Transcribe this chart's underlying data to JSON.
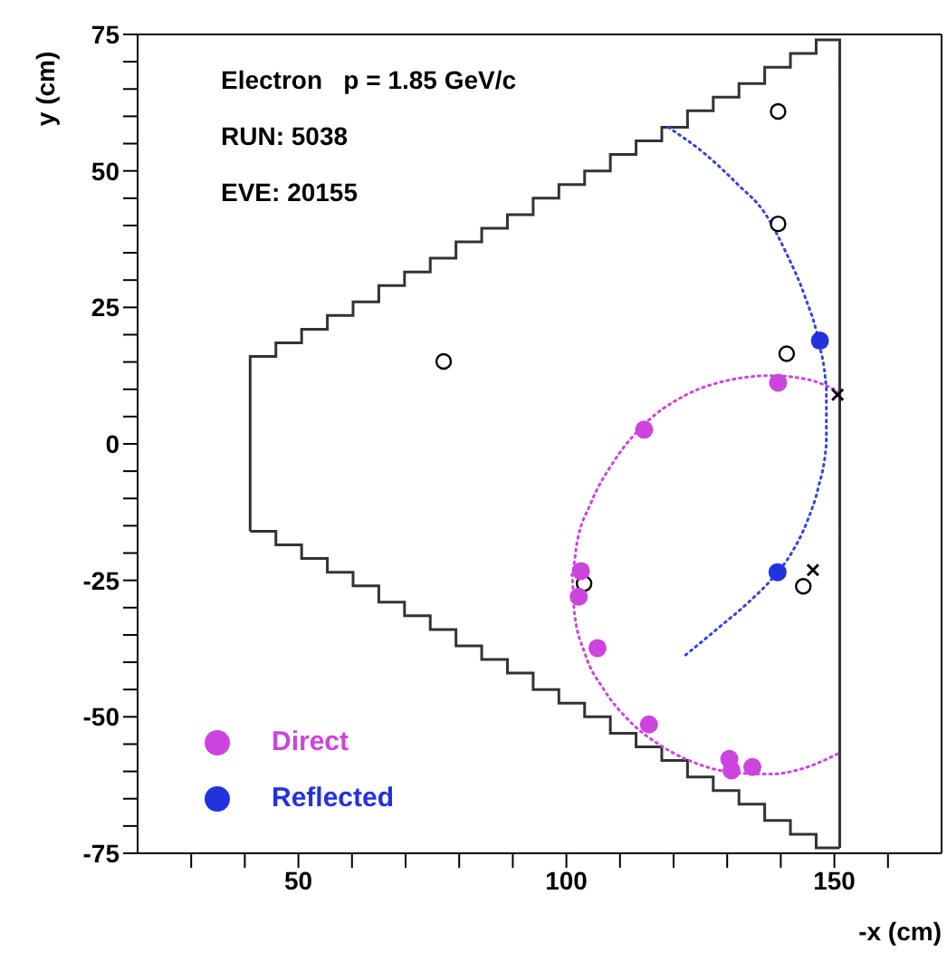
{
  "chart_data": {
    "type": "scatter",
    "xlabel": "-x (cm)",
    "ylabel": "y (cm)",
    "annotations": [
      "Electron   p = 1.85 GeV/c",
      "RUN: 5038",
      "EVE: 20155"
    ],
    "xlim": [
      20,
      170
    ],
    "ylim": [
      -75,
      75
    ],
    "xticks": [
      {
        "value": 30,
        "label": null
      },
      {
        "value": 40,
        "label": null
      },
      50,
      {
        "value": 60,
        "label": null
      },
      {
        "value": 70,
        "label": null
      },
      {
        "value": 80,
        "label": null
      },
      {
        "value": 90,
        "label": null
      },
      100,
      {
        "value": 110,
        "label": null
      },
      {
        "value": 120,
        "label": null
      },
      {
        "value": 130,
        "label": null
      },
      {
        "value": 140,
        "label": null
      },
      150,
      {
        "value": 160,
        "label": null
      }
    ],
    "yticks": [
      -75,
      {
        "value": -70,
        "label": null
      },
      {
        "value": -65,
        "label": null
      },
      {
        "value": -60,
        "label": null
      },
      {
        "value": -55,
        "label": null
      },
      -50,
      {
        "value": -45,
        "label": null
      },
      {
        "value": -40,
        "label": null
      },
      {
        "value": -35,
        "label": null
      },
      {
        "value": -30,
        "label": null
      },
      -25,
      {
        "value": -20,
        "label": null
      },
      {
        "value": -15,
        "label": null
      },
      {
        "value": -10,
        "label": null
      },
      {
        "value": -5,
        "label": null
      },
      0,
      {
        "value": 5,
        "label": null
      },
      {
        "value": 10,
        "label": null
      },
      {
        "value": 15,
        "label": null
      },
      {
        "value": 20,
        "label": null
      },
      25,
      {
        "value": 30,
        "label": null
      },
      {
        "value": 35,
        "label": null
      },
      {
        "value": 40,
        "label": null
      },
      {
        "value": 45,
        "label": null
      },
      50,
      {
        "value": 55,
        "label": null
      },
      {
        "value": 60,
        "label": null
      },
      {
        "value": 65,
        "label": null
      },
      {
        "value": 70,
        "label": null
      },
      75
    ],
    "grid": false,
    "legend": "bottom left",
    "series": [
      {
        "type": "step",
        "color": "#333333",
        "x": [
          41,
          41,
          45.8,
          50.6,
          55.4,
          60.2,
          65,
          69.8,
          74.6,
          79.4,
          84.2,
          89,
          93.8,
          98.6,
          103.4,
          108.2,
          113,
          117.8,
          122.6,
          127.4,
          132.2,
          137,
          141.8,
          146.6,
          151,
          151
        ],
        "values": [
          -16,
          16,
          18.5,
          21,
          23.5,
          26,
          29,
          31.5,
          34,
          37,
          39.5,
          42,
          45,
          47.5,
          50,
          53,
          55.5,
          58,
          61,
          63.5,
          66,
          69,
          71.5,
          74,
          74,
          -74
        ]
      },
      {
        "type": "step",
        "color": "#333333",
        "x": [
          41,
          45.8,
          50.6,
          55.4,
          60.2,
          65,
          69.8,
          74.6,
          79.4,
          84.2,
          89,
          93.8,
          98.6,
          103.4,
          108.2,
          113,
          117.8,
          122.6,
          127.4,
          132.2,
          137,
          141.8,
          146.6,
          151
        ],
        "values": [
          -16,
          -18.5,
          -21,
          -23.5,
          -26,
          -29,
          -31.5,
          -34,
          -37,
          -39.5,
          -42,
          -45,
          -47.5,
          -50,
          -53,
          -55.5,
          -58,
          -61,
          -63.5,
          -66,
          -69,
          -71.5,
          -74,
          -74
        ]
      },
      {
        "type": "line",
        "line_style": "dotted",
        "marker": "none",
        "color": "#cc44dd",
        "x": [
          151,
          145,
          138,
          130,
          122,
          115,
          109,
          104.5,
          102,
          101,
          101.5,
          103.5,
          107,
          112,
          118,
          125,
          132,
          138,
          144,
          151
        ],
        "values": [
          9.5,
          11.8,
          12.5,
          11.6,
          8.8,
          4,
          -3,
          -11,
          -18,
          -24,
          -31,
          -38.5,
          -45,
          -51,
          -55.5,
          -58.8,
          -60.3,
          -60.5,
          -59.5,
          -56.6
        ]
      },
      {
        "type": "line",
        "line_style": "dotted",
        "marker": "none",
        "color": "#3344dd",
        "x": [
          119,
          126,
          132,
          137,
          141,
          144.5,
          147,
          148.5,
          148.5,
          147,
          145,
          142,
          139,
          134,
          128,
          121.6
        ],
        "values": [
          58,
          53,
          47.5,
          42.3,
          35,
          27,
          19,
          10,
          0,
          -8,
          -14,
          -20,
          -24,
          -29,
          -34,
          -39.2
        ]
      },
      {
        "marker": "circle",
        "color": "#000000",
        "x": [
          139.5,
          139.5,
          77.1,
          141.1,
          103.3,
          144.2
        ],
        "values": [
          60.9,
          40.3,
          15.1,
          16.5,
          -25.6,
          -26.1
        ]
      },
      {
        "marker": "cross",
        "color": "#000000",
        "x": [
          146,
          150.6
        ],
        "values": [
          -23.1,
          9
        ]
      },
      {
        "marker": "circle",
        "name": "Direct",
        "color": "#cc44dd",
        "x": [
          139.5,
          114.5,
          102.7,
          102.3,
          105.8,
          115.4,
          130.4,
          130.8,
          134.7
        ],
        "values": [
          11.2,
          2.6,
          -23.3,
          -28,
          -37.4,
          -51.4,
          -57.7,
          -59.8,
          -59.2
        ]
      },
      {
        "marker": "circle",
        "name": "Reflected",
        "color": "#2233dd",
        "x": [
          147.3,
          139.4
        ],
        "values": [
          18.9,
          -23.5
        ]
      }
    ]
  }
}
